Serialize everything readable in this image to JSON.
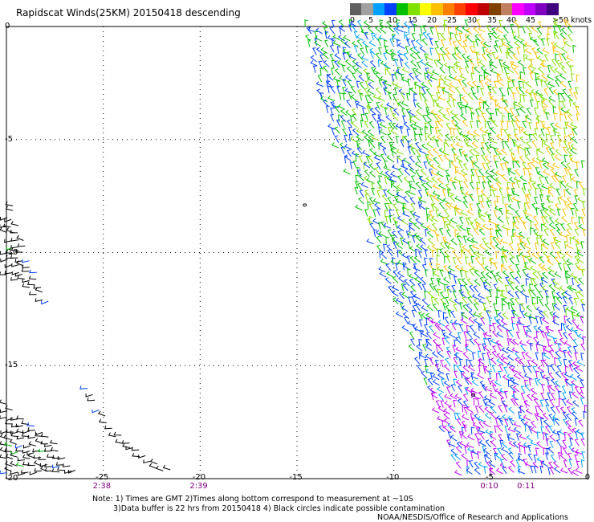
{
  "title": "Rapidscat Winds(25KM) 20150418 descending",
  "speed_scale": {
    "colors": [
      "#606060",
      "#a0a0a0",
      "#00a0ff",
      "#0040ff",
      "#00c000",
      "#80e000",
      "#ffff00",
      "#ffc000",
      "#ff8000",
      "#ff4000",
      "#ff0000",
      "#c00000",
      "#804000",
      "#c08060",
      "#ff00ff",
      "#c000ff",
      "#8000c0",
      "#400080"
    ],
    "labels": [
      "0",
      "5",
      "10",
      "15",
      "20",
      "25",
      "30",
      "35",
      "40",
      "45",
      ">50 knots"
    ]
  },
  "map": {
    "lon_range": [
      -30,
      0
    ],
    "lat_range": [
      -20,
      0
    ],
    "x_ticks": [
      "-25",
      "-20",
      "-15",
      "-10",
      "-5",
      "0"
    ],
    "y_ticks": [
      "0",
      "-5",
      "-10",
      "-15",
      "-20"
    ],
    "grid": "dotted",
    "time_labels": [
      {
        "lon": -25,
        "text": "2:38"
      },
      {
        "lon": -20,
        "text": "2:39"
      },
      {
        "lon": -5,
        "text": "0:10"
      },
      {
        "lon": -3.1,
        "text": "0:11"
      }
    ],
    "swaths": [
      {
        "name": "east",
        "poly": [
          [
            -14.6,
            0
          ],
          [
            -0.7,
            0
          ],
          [
            -0.1,
            -8
          ],
          [
            -0.1,
            -20
          ],
          [
            -6.5,
            -20
          ],
          [
            -13.6,
            -3.8
          ]
        ]
      },
      {
        "name": "west-1",
        "poly": [
          [
            -30,
            -7
          ],
          [
            -28.8,
            -10
          ],
          [
            -27,
            -14
          ],
          [
            -25.6,
            -16.4
          ],
          [
            -24.3,
            -18.4
          ],
          [
            -22,
            -19.7
          ],
          [
            -19.2,
            -20
          ],
          [
            -22,
            -19.5
          ],
          [
            -24.6,
            -17.6
          ],
          [
            -26.4,
            -15
          ],
          [
            -28,
            -12.2
          ],
          [
            -30,
            -11
          ]
        ]
      },
      {
        "name": "west-2",
        "poly": [
          [
            -30,
            -16.7
          ],
          [
            -27.4,
            -18.4
          ],
          [
            -26,
            -20
          ],
          [
            -30,
            -20
          ]
        ]
      }
    ],
    "contamination_circles": [
      [
        -14.6,
        -7.9
      ],
      [
        -5.9,
        -16.3
      ]
    ]
  },
  "notes": [
    "Note: 1) Times are GMT 2)Times along bottom correspond to measurement at ~10S",
    "3)Data buffer is 22 hrs from 20150418 4) Black circles indicate possible contamination"
  ],
  "credit": "NOAA/NESDIS/Office of Research and Applications"
}
